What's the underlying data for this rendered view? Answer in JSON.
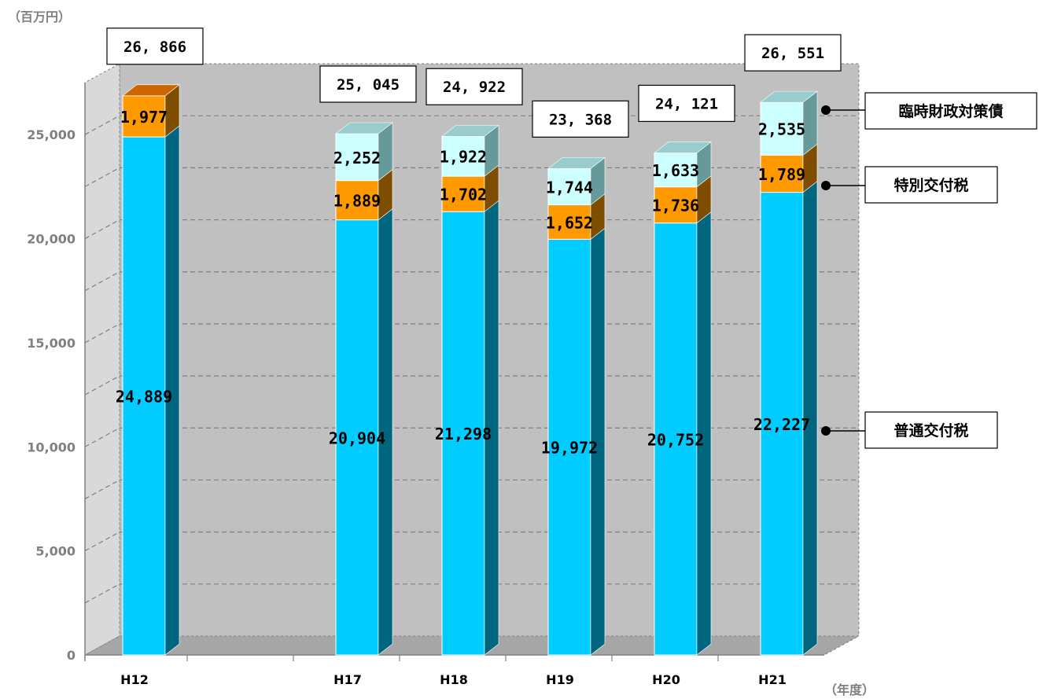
{
  "chart_data": {
    "type": "bar",
    "stacked": true,
    "categories": [
      "H12",
      "",
      "H17",
      "H18",
      "H19",
      "H20",
      "H21"
    ],
    "series": [
      {
        "name": "普通交付税",
        "values": [
          24889,
          null,
          20904,
          21298,
          19972,
          20752,
          22227
        ],
        "labels": [
          "24,889",
          "",
          "20,904",
          "21,298",
          "19,972",
          "20,752",
          "22,227"
        ],
        "color": "#00ccff"
      },
      {
        "name": "特別交付税",
        "values": [
          1977,
          null,
          1889,
          1702,
          1652,
          1736,
          1789
        ],
        "labels": [
          "1,977",
          "",
          "1,889",
          "1,702",
          "1,652",
          "1,736",
          "1,789"
        ],
        "color": "#ff9900"
      },
      {
        "name": "臨時財政対策債",
        "values": [
          null,
          null,
          2252,
          1922,
          1744,
          1633,
          2535
        ],
        "labels": [
          "",
          "",
          "2,252",
          "1,922",
          "1,744",
          "1,633",
          "2,535"
        ],
        "color": "#ccffff"
      }
    ],
    "totals": [
      "26, 866",
      "",
      "25, 045",
      "24, 922",
      "23, 368",
      "24, 121",
      "26, 551"
    ],
    "y_unit": "（百万円）",
    "x_unit": "（年度）",
    "ylim": [
      0,
      27500
    ],
    "yticks": [
      0,
      5000,
      10000,
      15000,
      20000,
      25000
    ],
    "ytick_labels": [
      "0",
      "5,000",
      "10,000",
      "15,000",
      "20,000",
      "25,000"
    ],
    "grid": true,
    "legend_placement": "right",
    "colors": {
      "plot_bg": "#c0c0c0",
      "grid": "#808080"
    }
  }
}
